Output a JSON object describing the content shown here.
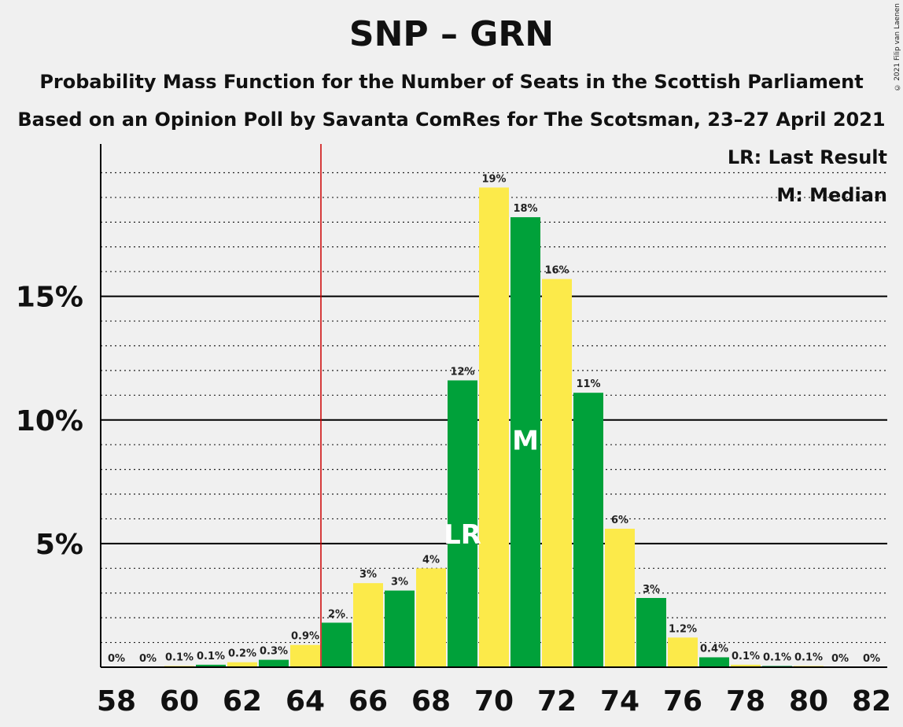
{
  "title": "SNP – GRN",
  "subtitle1": "Probability Mass Function for the Number of Seats in the Scottish Parliament",
  "subtitle2": "Based on an Opinion Poll by Savanta ComRes for The Scotsman, 23–27 April 2021",
  "copyright": "© 2021 Filip van Laenen",
  "legend": {
    "lr": "LR: Last Result",
    "m": "M: Median"
  },
  "colors": {
    "green": "#00a13a",
    "yellow": "#fcea4a",
    "majority_line": "#cc0000"
  },
  "chart_data": {
    "type": "bar",
    "x": [
      58,
      59,
      60,
      61,
      62,
      63,
      64,
      65,
      66,
      67,
      68,
      69,
      70,
      71,
      72,
      73,
      74,
      75,
      76,
      77,
      78,
      79,
      80,
      81,
      82
    ],
    "values": [
      0,
      0,
      0.05,
      0.1,
      0.2,
      0.3,
      0.9,
      1.8,
      3.4,
      3.1,
      4.0,
      11.6,
      19.4,
      18.2,
      15.7,
      11.1,
      5.6,
      2.8,
      1.2,
      0.4,
      0.1,
      0.05,
      0.05,
      0,
      0
    ],
    "labels": [
      "0%",
      "0%",
      "0.1%",
      "0.1%",
      "0.2%",
      "0.3%",
      "0.9%",
      "2%",
      "3%",
      "3%",
      "4%",
      "12%",
      "19%",
      "18%",
      "16%",
      "11%",
      "6%",
      "3%",
      "1.2%",
      "0.4%",
      "0.1%",
      "0.1%",
      "0.1%",
      "0%",
      "0%"
    ],
    "x_tick_labels": [
      "58",
      "60",
      "62",
      "64",
      "66",
      "68",
      "70",
      "72",
      "74",
      "76",
      "78",
      "80",
      "82"
    ],
    "y_tick_labels": [
      "5%",
      "10%",
      "15%"
    ],
    "y_ticks": [
      5,
      10,
      15
    ],
    "ylim": [
      0,
      21.2
    ],
    "majority_threshold": 64.5,
    "last_result": 69,
    "median": 71,
    "last_result_marker": "LR",
    "median_marker": "M"
  }
}
